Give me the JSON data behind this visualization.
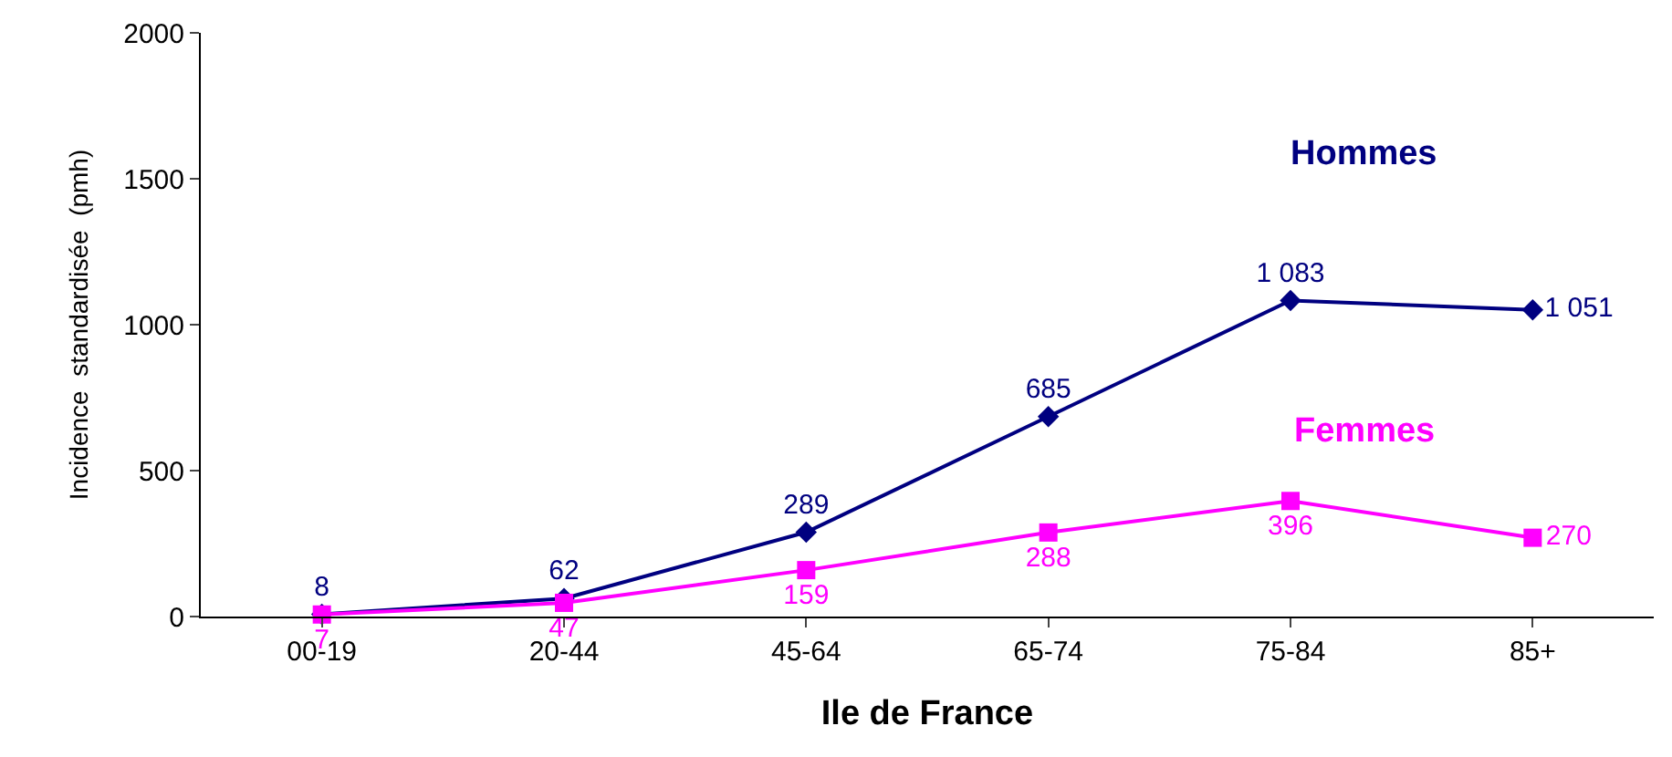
{
  "chart_data": {
    "type": "line",
    "xlabel": "Ile de France",
    "ylabel": "Incidence  standardisée  (pmh)",
    "categories": [
      "00-19",
      "20-44",
      "45-64",
      "65-74",
      "75-84",
      "85+"
    ],
    "series": [
      {
        "name": "Hommes",
        "color": "#000080",
        "marker": "diamond",
        "values": [
          8,
          62,
          289,
          685,
          1083,
          1051
        ],
        "value_labels": [
          "8",
          "62",
          "289",
          "685",
          "1 083",
          "1 051"
        ]
      },
      {
        "name": "Femmes",
        "color": "#ff00ff",
        "marker": "square",
        "values": [
          7,
          47,
          159,
          288,
          396,
          270
        ],
        "value_labels": [
          "7",
          "47",
          "159",
          "288",
          "396",
          "270"
        ]
      }
    ],
    "ylim": [
      0,
      2000
    ],
    "yticks": [
      0,
      500,
      1000,
      1500,
      2000
    ],
    "legend": false,
    "line_style": "solid"
  }
}
